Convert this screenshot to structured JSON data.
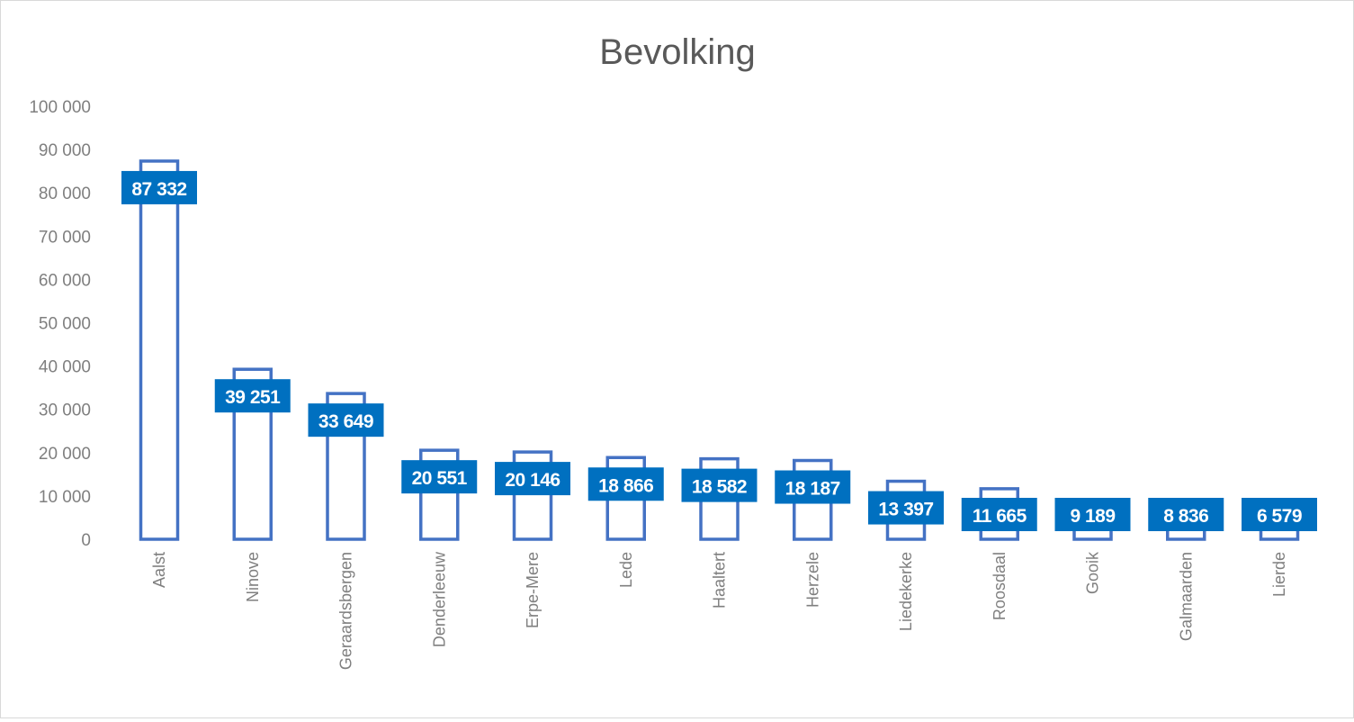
{
  "chart_data": {
    "type": "bar",
    "title": "Bevolking",
    "xlabel": "",
    "ylabel": "",
    "ylim": [
      0,
      100000
    ],
    "yticks": [
      "0",
      "10 000",
      "20 000",
      "30 000",
      "40 000",
      "50 000",
      "60 000",
      "70 000",
      "80 000",
      "90 000",
      "100 000"
    ],
    "grid": false,
    "categories": [
      "Aalst",
      "Ninove",
      "Geraardsbergen",
      "Denderleeuw",
      "Erpe-Mere",
      "Lede",
      "Haaltert",
      "Herzele",
      "Liedekerke",
      "Roosdaal",
      "Gooik",
      "Galmaarden",
      "Lierde"
    ],
    "values": [
      87332,
      39251,
      33649,
      20551,
      20146,
      18866,
      18582,
      18187,
      13397,
      11665,
      9189,
      8836,
      6579
    ],
    "data_labels": [
      "87 332",
      "39 251",
      "33 649",
      "20 551",
      "20 146",
      "18 866",
      "18 582",
      "18 187",
      "13 397",
      "11 665",
      "9 189",
      "8 836",
      "6 579"
    ],
    "colors": {
      "bar_outline": "#4472C4",
      "bar_fill": "#FFFFFF",
      "label_bg": "#0070C0",
      "label_text": "#FFFFFF",
      "title": "#595959",
      "axis_text": "#7F7F7F"
    }
  }
}
